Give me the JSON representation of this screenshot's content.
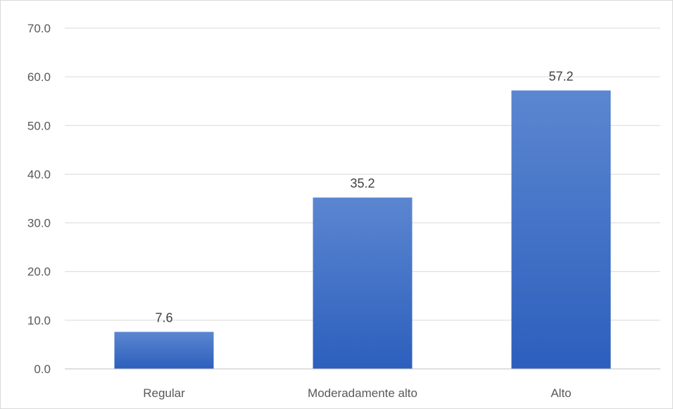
{
  "chart_data": {
    "type": "bar",
    "categories": [
      "Regular",
      "Moderadamente alto",
      "Alto"
    ],
    "values": [
      7.6,
      35.2,
      57.2
    ],
    "data_labels": [
      "7.6",
      "35.2",
      "57.2"
    ],
    "y_ticks": [
      "0.0",
      "10.0",
      "20.0",
      "30.0",
      "40.0",
      "50.0",
      "60.0",
      "70.0"
    ],
    "ylim": [
      0,
      70
    ],
    "grid": true,
    "legend": "none",
    "title": "",
    "xlabel": "",
    "ylabel": "",
    "bar_color_top": "#5b86d0",
    "bar_color_bottom": "#2c5fbd"
  }
}
